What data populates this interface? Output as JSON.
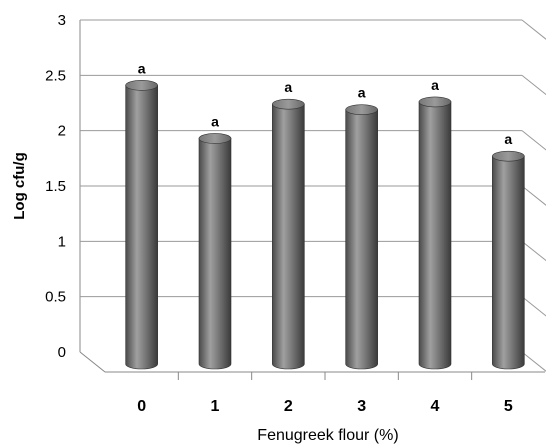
{
  "chart_data": {
    "type": "bar",
    "categories": [
      "0",
      "1",
      "2",
      "3",
      "4",
      "5"
    ],
    "values": [
      2.5,
      2.02,
      2.33,
      2.28,
      2.35,
      1.86
    ],
    "significance_letters": [
      "a",
      "a",
      "a",
      "a",
      "a",
      "a"
    ],
    "title": "",
    "xlabel": "Fenugreek flour (%)",
    "ylabel": "Log cfu/g",
    "ylim": [
      0,
      3
    ],
    "yticks": [
      "0",
      "0.5",
      "1",
      "1.5",
      "2",
      "2.5",
      "3"
    ],
    "grid": true,
    "legend": "none",
    "bar_color": "#777777"
  }
}
